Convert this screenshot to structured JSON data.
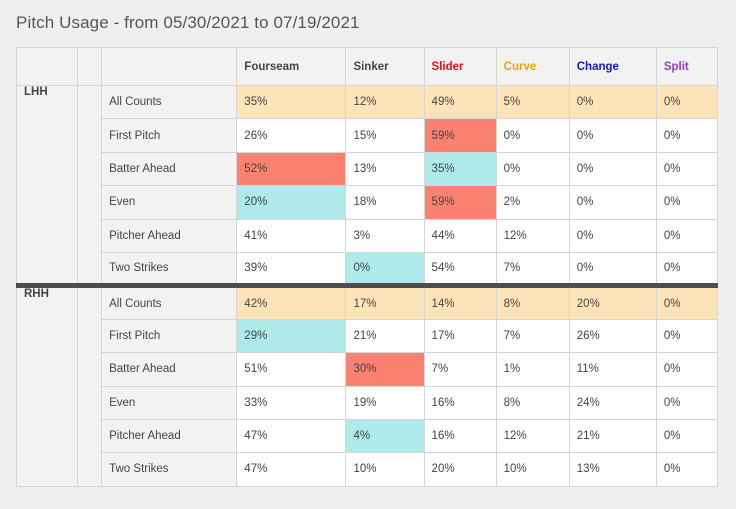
{
  "title": "Pitch Usage - from 05/30/2021 to 07/19/2021",
  "columns": [
    {
      "label": "Fourseam",
      "color": "#444444"
    },
    {
      "label": "Sinker",
      "color": "#444444"
    },
    {
      "label": "Slider",
      "color": "#dd1111"
    },
    {
      "label": "Curve",
      "color": "#f5a300"
    },
    {
      "label": "Change",
      "color": "#1515c8"
    },
    {
      "label": "Split",
      "color": "#9b3bc8"
    }
  ],
  "colors": {
    "all_counts": "#fde4b8",
    "high": "#fb8270",
    "low": "#afeaea"
  },
  "groups": [
    {
      "label": "LHH",
      "rows": [
        {
          "label": "All Counts",
          "values": [
            "35%",
            "12%",
            "49%",
            "5%",
            "0%",
            "0%"
          ],
          "highlights": [
            "",
            "",
            "",
            "",
            "",
            ""
          ]
        },
        {
          "label": "First Pitch",
          "values": [
            "26%",
            "15%",
            "59%",
            "0%",
            "0%",
            "0%"
          ],
          "highlights": [
            "",
            "",
            "high",
            "",
            "",
            ""
          ]
        },
        {
          "label": "Batter Ahead",
          "values": [
            "52%",
            "13%",
            "35%",
            "0%",
            "0%",
            "0%"
          ],
          "highlights": [
            "high",
            "",
            "low",
            "",
            "",
            ""
          ]
        },
        {
          "label": "Even",
          "values": [
            "20%",
            "18%",
            "59%",
            "2%",
            "0%",
            "0%"
          ],
          "highlights": [
            "low",
            "",
            "high",
            "",
            "",
            ""
          ]
        },
        {
          "label": "Pitcher Ahead",
          "values": [
            "41%",
            "3%",
            "44%",
            "12%",
            "0%",
            "0%"
          ],
          "highlights": [
            "",
            "",
            "",
            "",
            "",
            ""
          ]
        },
        {
          "label": "Two Strikes",
          "values": [
            "39%",
            "0%",
            "54%",
            "7%",
            "0%",
            "0%"
          ],
          "highlights": [
            "",
            "low",
            "",
            "",
            "",
            ""
          ]
        }
      ]
    },
    {
      "label": "RHH",
      "rows": [
        {
          "label": "All Counts",
          "values": [
            "42%",
            "17%",
            "14%",
            "8%",
            "20%",
            "0%"
          ],
          "highlights": [
            "",
            "",
            "",
            "",
            "",
            ""
          ]
        },
        {
          "label": "First Pitch",
          "values": [
            "29%",
            "21%",
            "17%",
            "7%",
            "26%",
            "0%"
          ],
          "highlights": [
            "low",
            "",
            "",
            "",
            "",
            ""
          ]
        },
        {
          "label": "Batter Ahead",
          "values": [
            "51%",
            "30%",
            "7%",
            "1%",
            "11%",
            "0%"
          ],
          "highlights": [
            "",
            "high",
            "",
            "",
            "",
            ""
          ]
        },
        {
          "label": "Even",
          "values": [
            "33%",
            "19%",
            "16%",
            "8%",
            "24%",
            "0%"
          ],
          "highlights": [
            "",
            "",
            "",
            "",
            "",
            ""
          ]
        },
        {
          "label": "Pitcher Ahead",
          "values": [
            "47%",
            "4%",
            "16%",
            "12%",
            "21%",
            "0%"
          ],
          "highlights": [
            "",
            "low",
            "",
            "",
            "",
            ""
          ]
        },
        {
          "label": "Two Strikes",
          "values": [
            "47%",
            "10%",
            "20%",
            "10%",
            "13%",
            "0%"
          ],
          "highlights": [
            "",
            "",
            "",
            "",
            "",
            ""
          ]
        }
      ]
    }
  ]
}
